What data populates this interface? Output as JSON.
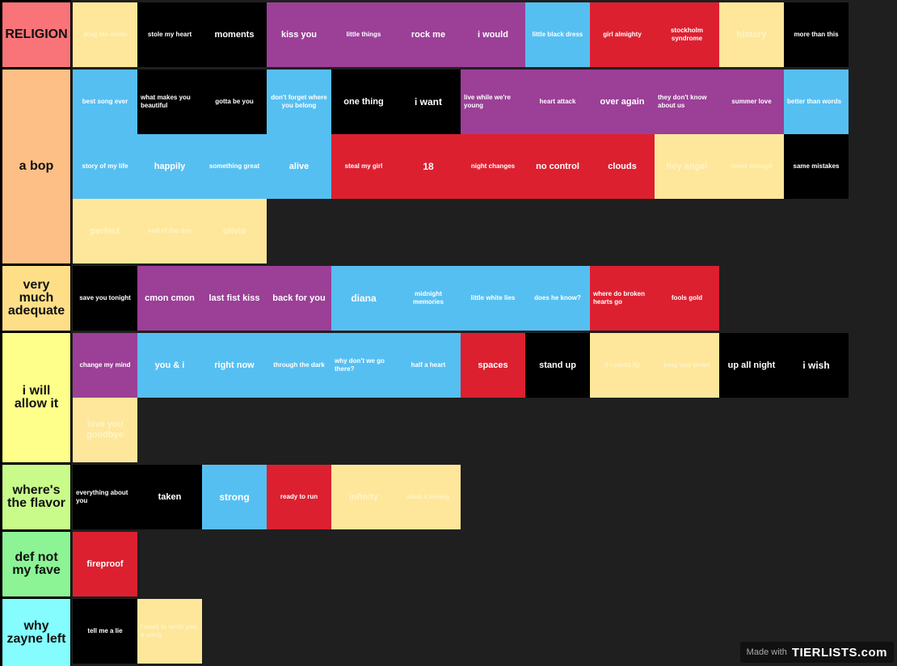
{
  "colors": {
    "purple": "#9b3f97",
    "blue": "#56bff1",
    "red": "#dc2030",
    "yellow": "#fee79a",
    "black": "#000000"
  },
  "tiers": [
    {
      "label": "RELIGION",
      "color": "#f97478",
      "items": [
        {
          "text": "drag me down",
          "color": "yellow"
        },
        {
          "text": "stole my heart",
          "color": "black"
        },
        {
          "text": "moments",
          "color": "black",
          "size": "big"
        },
        {
          "text": "kiss you",
          "color": "purple",
          "size": "big"
        },
        {
          "text": "little things",
          "color": "purple"
        },
        {
          "text": "rock me",
          "color": "purple",
          "size": "big"
        },
        {
          "text": "i would",
          "color": "purple",
          "size": "big"
        },
        {
          "text": "little black dress",
          "color": "blue"
        },
        {
          "text": "girl almighty",
          "color": "red"
        },
        {
          "text": "stockholm syndrome",
          "color": "red"
        },
        {
          "text": "history",
          "color": "yellow",
          "size": "big"
        },
        {
          "text": "more than this",
          "color": "black"
        }
      ]
    },
    {
      "label": "a bop",
      "color": "#fdbf85",
      "items": [
        {
          "text": "best song ever",
          "color": "blue"
        },
        {
          "text": "what makes you beautiful",
          "color": "black",
          "align": "left"
        },
        {
          "text": "gotta be you",
          "color": "black"
        },
        {
          "text": "don't forget where you belong",
          "color": "blue"
        },
        {
          "text": "one thing",
          "color": "black",
          "size": "big"
        },
        {
          "text": "i want",
          "color": "black",
          "size": "xl"
        },
        {
          "text": "live while we're young",
          "color": "purple",
          "align": "left"
        },
        {
          "text": "heart attack",
          "color": "purple"
        },
        {
          "text": "over again",
          "color": "purple",
          "size": "big"
        },
        {
          "text": "they don't know about us",
          "color": "purple",
          "align": "left"
        },
        {
          "text": "summer love",
          "color": "purple"
        },
        {
          "text": "better than words",
          "color": "blue",
          "align": "left"
        },
        {
          "text": "story of my life",
          "color": "blue"
        },
        {
          "text": "happily",
          "color": "blue",
          "size": "big"
        },
        {
          "text": "something great",
          "color": "blue"
        },
        {
          "text": "alive",
          "color": "blue",
          "size": "big"
        },
        {
          "text": "steal my girl",
          "color": "red"
        },
        {
          "text": "18",
          "color": "red",
          "size": "xl"
        },
        {
          "text": "night changes",
          "color": "red"
        },
        {
          "text": "no control",
          "color": "red",
          "size": "big"
        },
        {
          "text": "clouds",
          "color": "red",
          "size": "big"
        },
        {
          "text": "hey angel",
          "color": "yellow",
          "size": "big"
        },
        {
          "text": "never enough",
          "color": "yellow"
        },
        {
          "text": "same mistakes",
          "color": "black"
        },
        {
          "text": "perfect",
          "color": "yellow",
          "size": "big"
        },
        {
          "text": "end of the day",
          "color": "yellow"
        },
        {
          "text": "olivia",
          "color": "yellow",
          "size": "big"
        }
      ]
    },
    {
      "label": "very much adequate",
      "color": "#fedf87",
      "items": [
        {
          "text": "save you tonight",
          "color": "black"
        },
        {
          "text": "cmon cmon",
          "color": "purple",
          "size": "big"
        },
        {
          "text": "last fist kiss",
          "color": "purple",
          "size": "big"
        },
        {
          "text": "back for you",
          "color": "purple",
          "size": "big"
        },
        {
          "text": "diana",
          "color": "blue",
          "size": "xl"
        },
        {
          "text": "midnight memories",
          "color": "blue"
        },
        {
          "text": "little white lies",
          "color": "blue"
        },
        {
          "text": "does he know?",
          "color": "blue"
        },
        {
          "text": "where do broken hearts go",
          "color": "red",
          "align": "left"
        },
        {
          "text": "fools gold",
          "color": "red"
        }
      ]
    },
    {
      "label": "i will allow it",
      "color": "#fefe8a",
      "items": [
        {
          "text": "change my mind",
          "color": "purple"
        },
        {
          "text": "you & i",
          "color": "blue",
          "size": "big"
        },
        {
          "text": "right now",
          "color": "blue",
          "size": "big"
        },
        {
          "text": "through the dark",
          "color": "blue"
        },
        {
          "text": "why don't we go there?",
          "color": "blue",
          "align": "left"
        },
        {
          "text": "half a heart",
          "color": "blue"
        },
        {
          "text": "spaces",
          "color": "red",
          "size": "big"
        },
        {
          "text": "stand up",
          "color": "black",
          "size": "big"
        },
        {
          "text": "if i could fly",
          "color": "yellow"
        },
        {
          "text": "long way down",
          "color": "yellow"
        },
        {
          "text": "up all night",
          "color": "black",
          "size": "big"
        },
        {
          "text": "i wish",
          "color": "black",
          "size": "xl"
        },
        {
          "text": "love you goodbye",
          "color": "yellow",
          "size": "big"
        }
      ]
    },
    {
      "label": "where's the flavor",
      "color": "#c9fb8b",
      "items": [
        {
          "text": "everything about you",
          "color": "black",
          "align": "left"
        },
        {
          "text": "taken",
          "color": "black",
          "size": "big"
        },
        {
          "text": "strong",
          "color": "blue",
          "size": "xl"
        },
        {
          "text": "ready to run",
          "color": "red"
        },
        {
          "text": "infinity",
          "color": "yellow",
          "size": "big"
        },
        {
          "text": "what a feeling",
          "color": "yellow"
        }
      ]
    },
    {
      "label": "def not my fave",
      "color": "#8cf495",
      "items": [
        {
          "text": "fireproof",
          "color": "red",
          "size": "big"
        }
      ]
    },
    {
      "label": "why zayne left",
      "color": "#85fdfe",
      "items": [
        {
          "text": "tell me a lie",
          "color": "black"
        },
        {
          "text": "i want to write you a song",
          "color": "yellow",
          "align": "left"
        }
      ]
    }
  ],
  "watermark": {
    "made_with": "Made with",
    "brand": "TIERLISTS.com"
  }
}
